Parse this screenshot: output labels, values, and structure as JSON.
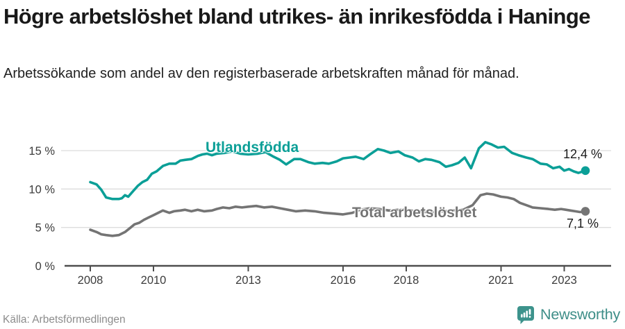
{
  "header": {
    "title": "Högre arbetslöshet bland utrikes- än inrikesfödda i Haninge",
    "subtitle": "Arbetssökande som andel av den registerbaserade arbetskraften månad för månad."
  },
  "chart_data": {
    "type": "line",
    "title": "Högre arbetslöshet bland utrikes- än inrikesfödda i Haninge",
    "subtitle": "Arbetssökande som andel av den registerbaserade arbetskraften månad för månad.",
    "x_unit": "year (monthly observations)",
    "y_unit": "percent of registered labour force",
    "ylim": [
      0,
      17
    ],
    "xlim": [
      2007.2,
      2024.5
    ],
    "grid": true,
    "legend": "inline-labels",
    "x_ticks": [
      {
        "year": 2008,
        "label": "2008"
      },
      {
        "year": 2010,
        "label": "2010"
      },
      {
        "year": 2013,
        "label": "2013"
      },
      {
        "year": 2016,
        "label": "2016"
      },
      {
        "year": 2018,
        "label": "2018"
      },
      {
        "year": 2021,
        "label": "2021"
      },
      {
        "year": 2023,
        "label": "2023"
      }
    ],
    "y_ticks": [
      {
        "value": 0,
        "label": "0 %"
      },
      {
        "value": 5,
        "label": "5 %"
      },
      {
        "value": 10,
        "label": "10 %"
      },
      {
        "value": 15,
        "label": "15 %"
      }
    ],
    "series": [
      {
        "name": "Utlandsfödda",
        "label": "Utlandsfödda",
        "color": "#0b9f97",
        "end_label": "12,4 %",
        "end_value": 12.4,
        "points": [
          [
            2008.0,
            10.9
          ],
          [
            2008.2,
            10.6
          ],
          [
            2008.35,
            9.9
          ],
          [
            2008.5,
            8.9
          ],
          [
            2008.7,
            8.7
          ],
          [
            2008.9,
            8.7
          ],
          [
            2009.0,
            8.8
          ],
          [
            2009.1,
            9.2
          ],
          [
            2009.2,
            9.0
          ],
          [
            2009.35,
            9.7
          ],
          [
            2009.5,
            10.4
          ],
          [
            2009.65,
            10.9
          ],
          [
            2009.8,
            11.2
          ],
          [
            2009.95,
            12.0
          ],
          [
            2010.1,
            12.3
          ],
          [
            2010.3,
            13.0
          ],
          [
            2010.5,
            13.3
          ],
          [
            2010.7,
            13.3
          ],
          [
            2010.85,
            13.7
          ],
          [
            2011.0,
            13.8
          ],
          [
            2011.2,
            13.9
          ],
          [
            2011.4,
            14.3
          ],
          [
            2011.55,
            14.5
          ],
          [
            2011.7,
            14.6
          ],
          [
            2011.85,
            14.4
          ],
          [
            2012.0,
            14.6
          ],
          [
            2012.25,
            14.7
          ],
          [
            2012.5,
            14.9
          ],
          [
            2012.75,
            14.6
          ],
          [
            2013.0,
            14.5
          ],
          [
            2013.3,
            14.6
          ],
          [
            2013.55,
            14.8
          ],
          [
            2013.8,
            14.2
          ],
          [
            2014.0,
            13.8
          ],
          [
            2014.2,
            13.2
          ],
          [
            2014.45,
            13.9
          ],
          [
            2014.65,
            13.9
          ],
          [
            2014.9,
            13.5
          ],
          [
            2015.1,
            13.3
          ],
          [
            2015.35,
            13.4
          ],
          [
            2015.55,
            13.3
          ],
          [
            2015.8,
            13.6
          ],
          [
            2016.0,
            14.0
          ],
          [
            2016.2,
            14.1
          ],
          [
            2016.4,
            14.2
          ],
          [
            2016.65,
            13.9
          ],
          [
            2016.85,
            14.5
          ],
          [
            2017.1,
            15.2
          ],
          [
            2017.3,
            15.0
          ],
          [
            2017.5,
            14.7
          ],
          [
            2017.75,
            14.9
          ],
          [
            2017.95,
            14.4
          ],
          [
            2018.2,
            14.1
          ],
          [
            2018.4,
            13.6
          ],
          [
            2018.6,
            13.9
          ],
          [
            2018.8,
            13.8
          ],
          [
            2019.05,
            13.5
          ],
          [
            2019.25,
            12.9
          ],
          [
            2019.45,
            13.1
          ],
          [
            2019.65,
            13.4
          ],
          [
            2019.85,
            14.1
          ],
          [
            2020.05,
            12.7
          ],
          [
            2020.3,
            15.3
          ],
          [
            2020.5,
            16.1
          ],
          [
            2020.7,
            15.8
          ],
          [
            2020.9,
            15.4
          ],
          [
            2021.1,
            15.5
          ],
          [
            2021.35,
            14.7
          ],
          [
            2021.55,
            14.4
          ],
          [
            2021.8,
            14.1
          ],
          [
            2022.0,
            13.9
          ],
          [
            2022.25,
            13.3
          ],
          [
            2022.45,
            13.2
          ],
          [
            2022.65,
            12.7
          ],
          [
            2022.85,
            12.9
          ],
          [
            2023.0,
            12.4
          ],
          [
            2023.15,
            12.6
          ],
          [
            2023.3,
            12.3
          ],
          [
            2023.45,
            12.1
          ],
          [
            2023.67,
            12.4
          ]
        ]
      },
      {
        "name": "Total arbetslöshet",
        "label": "Total arbetslöshet",
        "color": "#747474",
        "end_label": "7,1 %",
        "end_value": 7.1,
        "points": [
          [
            2008.0,
            4.7
          ],
          [
            2008.2,
            4.4
          ],
          [
            2008.35,
            4.1
          ],
          [
            2008.5,
            4.0
          ],
          [
            2008.7,
            3.9
          ],
          [
            2008.9,
            4.0
          ],
          [
            2009.1,
            4.4
          ],
          [
            2009.25,
            4.9
          ],
          [
            2009.4,
            5.4
          ],
          [
            2009.55,
            5.6
          ],
          [
            2009.7,
            6.0
          ],
          [
            2009.85,
            6.3
          ],
          [
            2010.0,
            6.6
          ],
          [
            2010.15,
            6.9
          ],
          [
            2010.3,
            7.2
          ],
          [
            2010.5,
            6.9
          ],
          [
            2010.65,
            7.1
          ],
          [
            2010.85,
            7.2
          ],
          [
            2011.0,
            7.3
          ],
          [
            2011.2,
            7.1
          ],
          [
            2011.4,
            7.3
          ],
          [
            2011.6,
            7.1
          ],
          [
            2011.85,
            7.2
          ],
          [
            2012.0,
            7.4
          ],
          [
            2012.2,
            7.6
          ],
          [
            2012.4,
            7.5
          ],
          [
            2012.6,
            7.7
          ],
          [
            2012.8,
            7.6
          ],
          [
            2013.0,
            7.7
          ],
          [
            2013.25,
            7.8
          ],
          [
            2013.5,
            7.6
          ],
          [
            2013.75,
            7.7
          ],
          [
            2014.0,
            7.5
          ],
          [
            2014.25,
            7.3
          ],
          [
            2014.5,
            7.1
          ],
          [
            2014.8,
            7.2
          ],
          [
            2015.1,
            7.1
          ],
          [
            2015.4,
            6.9
          ],
          [
            2015.7,
            6.8
          ],
          [
            2016.0,
            6.7
          ],
          [
            2016.3,
            6.9
          ],
          [
            2016.55,
            7.3
          ],
          [
            2016.85,
            7.5
          ],
          [
            2017.15,
            7.4
          ],
          [
            2017.45,
            7.2
          ],
          [
            2017.75,
            7.3
          ],
          [
            2018.0,
            7.3
          ],
          [
            2018.3,
            7.1
          ],
          [
            2018.6,
            7.0
          ],
          [
            2018.9,
            7.0
          ],
          [
            2019.2,
            7.1
          ],
          [
            2019.5,
            7.2
          ],
          [
            2019.8,
            7.3
          ],
          [
            2020.1,
            7.9
          ],
          [
            2020.35,
            9.2
          ],
          [
            2020.55,
            9.4
          ],
          [
            2020.75,
            9.3
          ],
          [
            2021.0,
            9.0
          ],
          [
            2021.2,
            8.9
          ],
          [
            2021.4,
            8.7
          ],
          [
            2021.6,
            8.2
          ],
          [
            2021.8,
            7.9
          ],
          [
            2022.0,
            7.6
          ],
          [
            2022.25,
            7.5
          ],
          [
            2022.5,
            7.4
          ],
          [
            2022.7,
            7.3
          ],
          [
            2022.9,
            7.4
          ],
          [
            2023.05,
            7.3
          ],
          [
            2023.2,
            7.2
          ],
          [
            2023.35,
            7.1
          ],
          [
            2023.5,
            7.0
          ],
          [
            2023.67,
            7.1
          ]
        ]
      }
    ]
  },
  "footer": {
    "source": "Källa: Arbetsförmedlingen",
    "brand": "Newsworthy"
  },
  "colors": {
    "accent_teal": "#0b9f97",
    "series_gray": "#747474",
    "brand_teal": "#3d938c",
    "grid": "#dcdcdc",
    "axis": "#4d4d4d",
    "title_text": "#191919",
    "source_text": "#8c8c8c"
  }
}
